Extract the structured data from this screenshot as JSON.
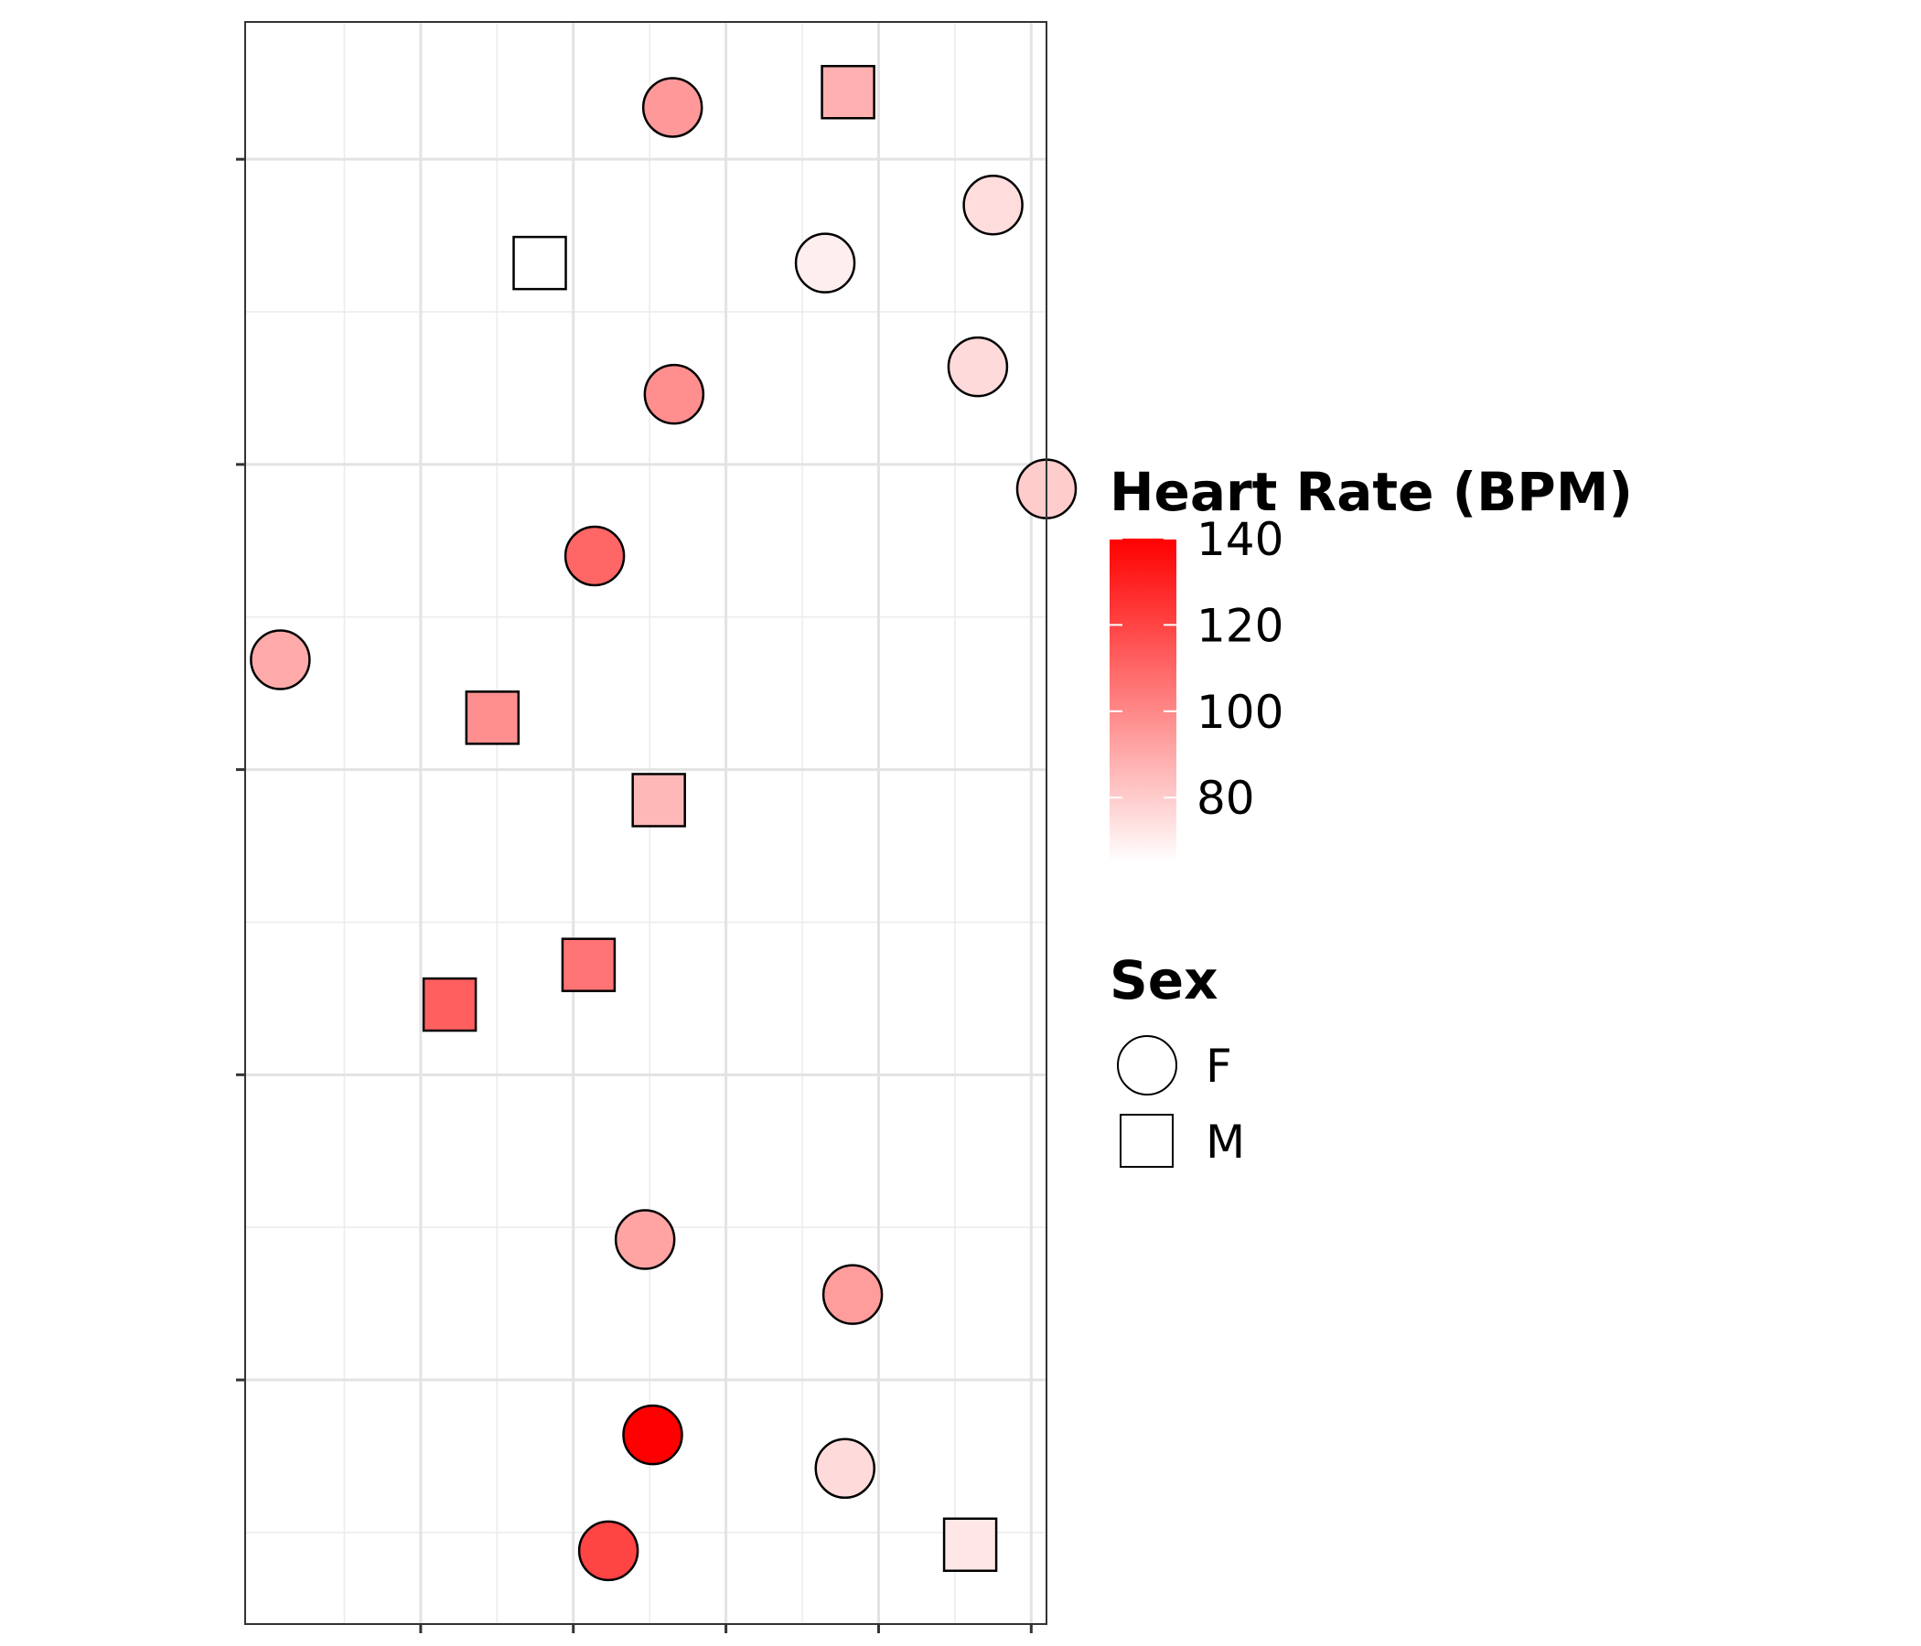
{
  "chart_data": {
    "type": "scatter",
    "title": "",
    "xlabel": "",
    "ylabel": "",
    "xlim": [
      -0.15,
      5.1
    ],
    "ylim": [
      -0.8,
      4.45
    ],
    "x_ticks": [
      1,
      2,
      3,
      4,
      5
    ],
    "y_ticks": [
      0,
      1,
      2,
      3,
      4
    ],
    "grid": true,
    "color_scale": {
      "title": "Heart Rate (BPM)",
      "min": 65,
      "max": 140,
      "low_color": "#ffffff",
      "high_color": "#ff0000",
      "breaks": [
        80,
        100,
        120,
        140
      ]
    },
    "shape_legend": {
      "title": "Sex",
      "entries": [
        {
          "label": "F",
          "shape": "circle"
        },
        {
          "label": "M",
          "shape": "square"
        }
      ]
    },
    "points": [
      {
        "x": 2.65,
        "y": 4.17,
        "sex": "F",
        "hr": 95
      },
      {
        "x": 3.8,
        "y": 4.22,
        "sex": "M",
        "hr": 88
      },
      {
        "x": 4.75,
        "y": 3.85,
        "sex": "F",
        "hr": 75
      },
      {
        "x": 1.78,
        "y": 3.66,
        "sex": "M",
        "hr": 65
      },
      {
        "x": 3.65,
        "y": 3.66,
        "sex": "F",
        "hr": 70
      },
      {
        "x": 4.65,
        "y": 3.32,
        "sex": "F",
        "hr": 76
      },
      {
        "x": 2.66,
        "y": 3.23,
        "sex": "F",
        "hr": 98
      },
      {
        "x": 5.1,
        "y": 2.92,
        "sex": "F",
        "hr": 80
      },
      {
        "x": 2.14,
        "y": 2.7,
        "sex": "F",
        "hr": 110
      },
      {
        "x": 0.08,
        "y": 2.36,
        "sex": "F",
        "hr": 90
      },
      {
        "x": 1.47,
        "y": 2.17,
        "sex": "M",
        "hr": 98
      },
      {
        "x": 2.56,
        "y": 1.9,
        "sex": "M",
        "hr": 86
      },
      {
        "x": 2.1,
        "y": 1.36,
        "sex": "M",
        "hr": 106
      },
      {
        "x": 1.19,
        "y": 1.23,
        "sex": "M",
        "hr": 112
      },
      {
        "x": 2.47,
        "y": 0.46,
        "sex": "F",
        "hr": 92
      },
      {
        "x": 3.83,
        "y": 0.28,
        "sex": "F",
        "hr": 94
      },
      {
        "x": 2.52,
        "y": -0.18,
        "sex": "F",
        "hr": 140
      },
      {
        "x": 3.78,
        "y": -0.29,
        "sex": "F",
        "hr": 76
      },
      {
        "x": 2.23,
        "y": -0.56,
        "sex": "F",
        "hr": 120
      },
      {
        "x": 4.6,
        "y": -0.54,
        "sex": "M",
        "hr": 72
      }
    ]
  }
}
